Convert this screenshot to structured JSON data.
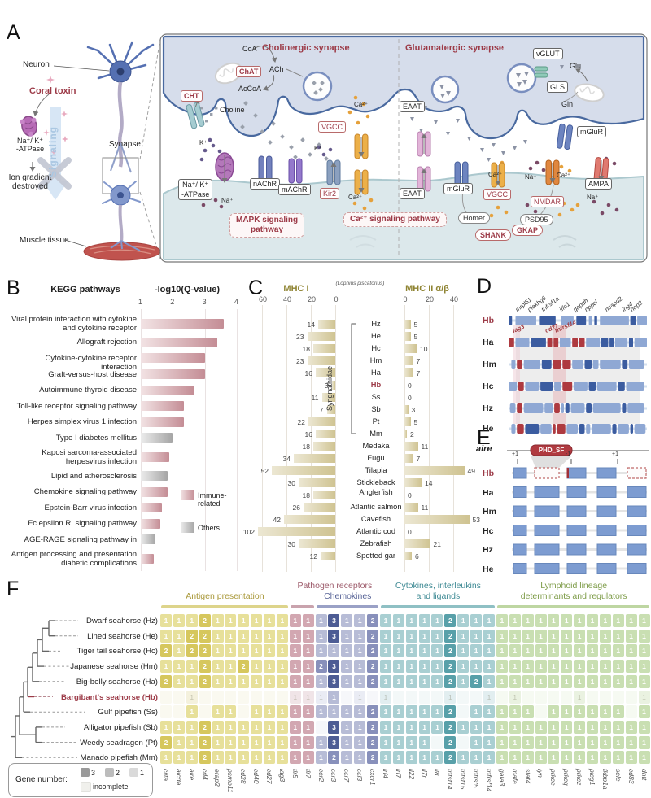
{
  "panels": {
    "a": "A",
    "b": "B",
    "c": "C",
    "d": "D",
    "e": "E",
    "f": "F"
  },
  "a": {
    "labels": {
      "neuron": "Neuron",
      "coral_toxin": "Coral toxin",
      "nak_atpase": "Na⁺/ K⁺\n-ATPase",
      "signaling": "Signaling",
      "ion_gradient": "Ion gradient\ndestroyed",
      "synapse": "Synapse",
      "muscle": "Muscle tissue",
      "chol_title": "Cholinergic synapse",
      "glut_title": "Glutamatergic synapse",
      "coa": "CoA",
      "chat": "ChAT",
      "ach": "ACh",
      "accoa": "AcCoA",
      "cht": "CHT",
      "choline": "Choline",
      "k": "K⁺",
      "na": "Na⁺",
      "ca": "Ca²⁺",
      "vgcc": "VGCC",
      "nachr": "nAChR",
      "machr": "mAChR",
      "kir2": "Kir2",
      "mapk": "MAPK signaling\npathway",
      "ca_path": "Ca²⁺ signaling pathway",
      "eaat": "EAAT",
      "vglut": "vGLUT",
      "glu": "Glu",
      "gls": "GLS",
      "gln": "Gln",
      "mglur": "mGluR",
      "nmdar": "NMDAR",
      "ampa": "AMPA",
      "homer": "Homer",
      "psd95": "PSD95",
      "gkap": "GKAP",
      "shank": "SHANK"
    }
  },
  "d": {
    "row_labels": [
      "Hb",
      "Ha",
      "Hm",
      "Hc",
      "Hz",
      "He"
    ],
    "top_genes": [
      "mrpl51",
      "plekhg6",
      "tnfrsf1a",
      "iffo1",
      "gapdh",
      "nppcl",
      "ncapd2",
      "ing4",
      "nop2"
    ],
    "red_genes": [
      "lag3",
      "cd27",
      "tnfrsf14"
    ]
  },
  "e": {
    "gene": "aire",
    "domain": "PHD_SF",
    "markers": [
      "+1",
      "-1",
      "+1"
    ],
    "rows": [
      "Hb",
      "Ha",
      "Hm",
      "Hc",
      "Hz",
      "He"
    ]
  },
  "chart_data": [
    {
      "id": "kegg",
      "type": "bar",
      "title": "KEGG pathways",
      "axis_title": "-log10(Q-value)",
      "ticks": [
        1,
        2,
        3,
        4
      ],
      "xlim": [
        1,
        4
      ],
      "legend": [
        {
          "label": "Immune-related",
          "group": "immune"
        },
        {
          "label": "Others",
          "group": "other"
        }
      ],
      "bars": [
        {
          "label": [
            "Viral protein interaction with cytokine",
            "and cytokine receptor"
          ],
          "value": 3.6,
          "group": "immune"
        },
        {
          "label": [
            "Allograft rejection"
          ],
          "value": 3.4,
          "group": "immune"
        },
        {
          "label": [
            "Cytokine-cytokine receptor interaction"
          ],
          "value": 3.0,
          "group": "immune"
        },
        {
          "label": [
            "Graft-versus-host disease"
          ],
          "value": 3.0,
          "group": "immune"
        },
        {
          "label": [
            "Autoimmune thyroid disease"
          ],
          "value": 2.65,
          "group": "immune"
        },
        {
          "label": [
            "Toll-like receptor signaling pathway"
          ],
          "value": 2.35,
          "group": "immune"
        },
        {
          "label": [
            "Herpes simplex virus 1 infection"
          ],
          "value": 2.35,
          "group": "immune"
        },
        {
          "label": [
            "Type I diabetes mellitus"
          ],
          "value": 2.0,
          "group": "other"
        },
        {
          "label": [
            "Kaposi sarcoma-associated",
            "herpesvirus infection"
          ],
          "value": 1.9,
          "group": "immune"
        },
        {
          "label": [
            "Lipid and atherosclerosis"
          ],
          "value": 1.85,
          "group": "other"
        },
        {
          "label": [
            "Chemokine signaling pathway"
          ],
          "value": 1.85,
          "group": "immune"
        },
        {
          "label": [
            "Epstein-Barr virus infection"
          ],
          "value": 1.65,
          "group": "immune"
        },
        {
          "label": [
            "Fc epsilon RI signaling pathway"
          ],
          "value": 1.6,
          "group": "immune"
        },
        {
          "label": [
            "AGE-RAGE signaling pathway in"
          ],
          "value": 1.45,
          "group": "other"
        },
        {
          "label": [
            "Antigen processing and presentation",
            "diabetic complications"
          ],
          "value": 1.4,
          "group": "immune"
        }
      ]
    },
    {
      "id": "mhc",
      "type": "bar",
      "left_title": "MHC I",
      "right_title": "MHC II α/β",
      "left_ticks": [
        60,
        40,
        20,
        0
      ],
      "right_ticks": [
        0,
        20,
        40
      ],
      "family_bracket": "Syngnathidae",
      "rows": [
        {
          "name": "Hz",
          "mhc1": 14,
          "mhc2": 5,
          "syn": true
        },
        {
          "name": "He",
          "mhc1": 23,
          "mhc2": 5,
          "syn": true
        },
        {
          "name": "Hc",
          "mhc1": 18,
          "mhc2": 10,
          "syn": true
        },
        {
          "name": "Hm",
          "mhc1": 23,
          "mhc2": 7,
          "syn": true
        },
        {
          "name": "Ha",
          "mhc1": 16,
          "mhc2": 7,
          "syn": true
        },
        {
          "name": "Hb",
          "mhc1": 3,
          "mhc2": 0,
          "syn": true,
          "highlight": true
        },
        {
          "name": "Ss",
          "mhc1": 11,
          "mhc2": 0,
          "syn": true
        },
        {
          "name": "Sb",
          "mhc1": 7,
          "mhc2": 3,
          "syn": true
        },
        {
          "name": "Pt",
          "mhc1": 22,
          "mhc2": 5,
          "syn": true
        },
        {
          "name": "Mm",
          "mhc1": 16,
          "mhc2": 2,
          "syn": true
        },
        {
          "name": "Medaka",
          "mhc1": 18,
          "mhc2": 11
        },
        {
          "name": "Fugu",
          "mhc1": 34,
          "mhc2": 7
        },
        {
          "name": "Tilapia",
          "mhc1": 52,
          "mhc2": 49
        },
        {
          "name": "Stickleback",
          "mhc1": 30,
          "mhc2": 14
        },
        {
          "name": "Anglerfish",
          "sub": "(Lophius piscatorius)",
          "mhc1": 18,
          "mhc2": 0
        },
        {
          "name": "Atlantic salmon",
          "mhc1": 26,
          "mhc2": 11
        },
        {
          "name": "Cavefish",
          "mhc1": 42,
          "mhc2": 53
        },
        {
          "name": "Atlantic cod",
          "mhc1": 102,
          "mhc2": 0
        },
        {
          "name": "Zebrafish",
          "mhc1": 30,
          "mhc2": 21
        },
        {
          "name": "Spotted gar",
          "mhc1": 12,
          "mhc2": 6
        }
      ]
    },
    {
      "id": "immune_gene_heatmap",
      "type": "heatmap",
      "groups": [
        {
          "label": "Antigen presentation",
          "color": "#a89737",
          "bar_color": "#ddd48b",
          "bar": [
            0,
            9
          ],
          "center": [
            0,
            9
          ],
          "line": 2
        },
        {
          "label": "Pathogen receptors",
          "color": "#9c5a6a",
          "bar_color": "#c9a3ad",
          "bar": [
            10,
            11
          ],
          "center": [
            10,
            16
          ],
          "line": 1
        },
        {
          "label": "Chemokines",
          "color": "#5a6698",
          "bar_color": "#9aa1c6",
          "bar": [
            12,
            16
          ],
          "center": [
            12,
            16
          ],
          "line": 2
        },
        {
          "label": "Cytokines, interleukins|and ligands",
          "color": "#3f8a94",
          "bar_color": "#8fc0c4",
          "bar": [
            17,
            25
          ],
          "center": [
            17,
            25
          ],
          "line": 1
        },
        {
          "label": "Lymphoid lineage|determinants and regulators",
          "color": "#7e9c49",
          "bar_color": "#bed6a2",
          "bar": [
            26,
            37
          ],
          "center": [
            26,
            37
          ],
          "line": 1
        }
      ],
      "columns": [
        "ciita",
        "aicda",
        "aire",
        "cd4",
        "erap2",
        "psmb11",
        "cd28",
        "cd40",
        "cd27",
        "lag3",
        "tlr5",
        "tlr7",
        "ccr2",
        "ccr3",
        "ccr7",
        "ccl3",
        "cxcr1",
        "irf4",
        "irf7",
        "il22",
        "il7r",
        "il8",
        "tnfsf14",
        "tnfsf15",
        "tnfrsf5",
        "tnfrsf14",
        "gata3",
        "mafa",
        "stat4",
        "lyn",
        "prkce",
        "prkcq",
        "prkcz",
        "plcg1",
        "fkbp1a",
        "sele",
        "cd83",
        "dntt"
      ],
      "rows": [
        {
          "species": "Dwarf seahorse (Hz)",
          "values": [
            "1",
            "1",
            "1",
            "2",
            "1",
            "1",
            "1",
            "1",
            "1",
            "1",
            "1",
            "1",
            "1",
            "3",
            "1",
            "1",
            "2",
            "1",
            "1",
            "1",
            "1",
            "1",
            "2",
            "1",
            "1",
            "1",
            "1",
            "1",
            "1",
            "1",
            "1",
            "1",
            "1",
            "1",
            "1",
            "1",
            "1",
            "1"
          ]
        },
        {
          "species": "Lined seahorse (He)",
          "values": [
            "1",
            "1",
            "2",
            "2",
            "1",
            "1",
            "1",
            "1",
            "1",
            "1",
            "1",
            "1",
            "1",
            "3",
            "1",
            "1",
            "2",
            "1",
            "1",
            "1",
            "1",
            "1",
            "2",
            "1",
            "1",
            "1",
            "1",
            "1",
            "1",
            "1",
            "1",
            "1",
            "1",
            "1",
            "1",
            "1",
            "1",
            "1"
          ]
        },
        {
          "species": "Tiger tail seahorse (Hc)",
          "values": [
            "2",
            "1",
            "2",
            "2",
            "1",
            "1",
            "1",
            "1",
            "1",
            "1",
            "1",
            "1",
            "1",
            "1",
            "1",
            "1",
            "2",
            "1",
            "1",
            "1",
            "1",
            "1",
            "2",
            "1",
            "1",
            "1",
            "1",
            "1",
            "1",
            "1",
            "1",
            "1",
            "1",
            "1",
            "1",
            "1",
            "1",
            "1"
          ]
        },
        {
          "species": "Japanese seahorse (Hm)",
          "values": [
            "1",
            "1",
            "1",
            "2",
            "1",
            "1",
            "2",
            "1",
            "1",
            "1",
            "1",
            "1",
            "2",
            "3",
            "1",
            "1",
            "2",
            "1",
            "1",
            "1",
            "1",
            "1",
            "2",
            "1",
            "1",
            "1",
            "1",
            "1",
            "1",
            "1",
            "1",
            "1",
            "1",
            "1",
            "1",
            "1",
            "1",
            "1"
          ]
        },
        {
          "species": "Big-belly seahorse (Ha)",
          "values": [
            "2",
            "1",
            "1",
            "2",
            "1",
            "1",
            "1",
            "1",
            "1",
            "1",
            "1",
            "1",
            "1",
            "3",
            "1",
            "1",
            "2",
            "1",
            "1",
            "1",
            "1",
            "1",
            "2",
            "1",
            "2",
            "1",
            "1",
            "1",
            "1",
            "1",
            "1",
            "1",
            "1",
            "1",
            "1",
            "1",
            "1",
            "1"
          ]
        },
        {
          "species": "Bargibant's seahorse (Hb)",
          "highlight": true,
          "values": [
            "",
            "",
            "i",
            "",
            "",
            "",
            "",
            "",
            "",
            "",
            "i",
            "i",
            "i",
            "1",
            "",
            "i",
            "",
            "i",
            "",
            "",
            "",
            "",
            "i",
            "",
            "",
            "i",
            "",
            "i",
            "",
            "",
            "",
            "",
            "i",
            "",
            "",
            "",
            "",
            "i"
          ]
        },
        {
          "species": "Gulf pipefish (Ss)",
          "values": [
            "",
            "",
            "1",
            "",
            "1",
            "1",
            "",
            "1",
            "1",
            "1",
            "1",
            "1",
            "1",
            "1",
            "1",
            "1",
            "2",
            "1",
            "1",
            "1",
            "1",
            "1",
            "2",
            "",
            "1",
            "1",
            "1",
            "1",
            "1",
            "",
            "1",
            "1",
            "1",
            "1",
            "1",
            "1",
            "",
            "1"
          ]
        },
        {
          "species": "Alligator pipefish (Sb)",
          "values": [
            "1",
            "1",
            "1",
            "2",
            "1",
            "1",
            "1",
            "1",
            "1",
            "1",
            "1",
            "1",
            "",
            "3",
            "1",
            "1",
            "2",
            "1",
            "1",
            "1",
            "1",
            "1",
            "2",
            "1",
            "1",
            "1",
            "1",
            "1",
            "1",
            "1",
            "1",
            "1",
            "1",
            "1",
            "1",
            "1",
            "1",
            "1"
          ]
        },
        {
          "species": "Weedy seadragon (Pt)",
          "values": [
            "2",
            "1",
            "1",
            "2",
            "1",
            "1",
            "1",
            "1",
            "1",
            "1",
            "1",
            "1",
            "1",
            "3",
            "1",
            "1",
            "2",
            "1",
            "1",
            "1",
            "1",
            "",
            "2",
            "",
            "1",
            "1",
            "1",
            "1",
            "1",
            "1",
            "1",
            "1",
            "1",
            "1",
            "1",
            "1",
            "1",
            "1"
          ]
        },
        {
          "species": "Manado pipefish (Mm)",
          "values": [
            "1",
            "1",
            "1",
            "2",
            "1",
            "1",
            "1",
            "1",
            "1",
            "1",
            "1",
            "1",
            "1",
            "2",
            "1",
            "1",
            "2",
            "1",
            "1",
            "1",
            "1",
            "1",
            "2",
            "1",
            "1",
            "1",
            "1",
            "1",
            "1",
            "1",
            "1",
            "1",
            "1",
            "1",
            "1",
            "1",
            "1",
            "1"
          ]
        }
      ],
      "legend": {
        "title": "Gene number:",
        "items": [
          "3",
          "2",
          "1"
        ],
        "incomplete": "incomplete"
      }
    }
  ]
}
